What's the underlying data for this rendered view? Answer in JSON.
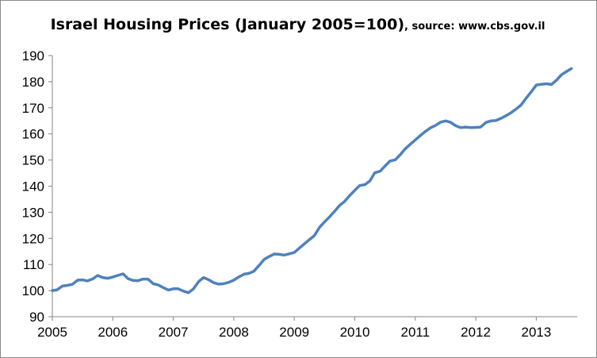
{
  "chart_data": {
    "type": "line",
    "title": "Israel Housing Prices (January 2005=100)",
    "subtitle": ", source: www.cbs.gov.il",
    "xlabel": "",
    "ylabel": "",
    "ylim": [
      90,
      190
    ],
    "xlim": [
      2005,
      2013.67
    ],
    "grid": false,
    "legend": "none",
    "y_ticks": [
      90,
      100,
      110,
      120,
      130,
      140,
      150,
      160,
      170,
      180,
      190
    ],
    "x_ticks": [
      2005,
      2006,
      2007,
      2008,
      2009,
      2010,
      2011,
      2012,
      2013
    ],
    "series": [
      {
        "color": "#4f81bd",
        "points": [
          [
            2005.0,
            100.0
          ],
          [
            2005.08,
            100.3
          ],
          [
            2005.17,
            101.8
          ],
          [
            2005.25,
            102.0
          ],
          [
            2005.33,
            102.4
          ],
          [
            2005.42,
            104.0
          ],
          [
            2005.5,
            104.1
          ],
          [
            2005.58,
            103.7
          ],
          [
            2005.67,
            104.5
          ],
          [
            2005.75,
            105.8
          ],
          [
            2005.83,
            105.0
          ],
          [
            2005.92,
            104.7
          ],
          [
            2006.0,
            105.2
          ],
          [
            2006.08,
            105.8
          ],
          [
            2006.17,
            106.4
          ],
          [
            2006.25,
            104.6
          ],
          [
            2006.33,
            103.9
          ],
          [
            2006.42,
            103.8
          ],
          [
            2006.5,
            104.4
          ],
          [
            2006.58,
            104.4
          ],
          [
            2006.67,
            102.6
          ],
          [
            2006.75,
            102.2
          ],
          [
            2006.83,
            101.2
          ],
          [
            2006.92,
            100.2
          ],
          [
            2007.0,
            100.7
          ],
          [
            2007.08,
            100.7
          ],
          [
            2007.17,
            99.8
          ],
          [
            2007.25,
            99.2
          ],
          [
            2007.33,
            100.6
          ],
          [
            2007.42,
            103.5
          ],
          [
            2007.5,
            105.0
          ],
          [
            2007.58,
            104.2
          ],
          [
            2007.67,
            103.0
          ],
          [
            2007.75,
            102.5
          ],
          [
            2007.83,
            102.6
          ],
          [
            2007.92,
            103.2
          ],
          [
            2008.0,
            104.0
          ],
          [
            2008.08,
            105.2
          ],
          [
            2008.17,
            106.3
          ],
          [
            2008.25,
            106.6
          ],
          [
            2008.33,
            107.4
          ],
          [
            2008.42,
            109.7
          ],
          [
            2008.5,
            111.9
          ],
          [
            2008.58,
            113.0
          ],
          [
            2008.67,
            114.0
          ],
          [
            2008.75,
            113.9
          ],
          [
            2008.83,
            113.6
          ],
          [
            2008.92,
            114.1
          ],
          [
            2009.0,
            114.6
          ],
          [
            2009.08,
            116.2
          ],
          [
            2009.17,
            118.0
          ],
          [
            2009.25,
            119.5
          ],
          [
            2009.33,
            121.0
          ],
          [
            2009.42,
            124.3
          ],
          [
            2009.5,
            126.3
          ],
          [
            2009.58,
            128.2
          ],
          [
            2009.67,
            130.5
          ],
          [
            2009.75,
            132.6
          ],
          [
            2009.83,
            134.1
          ],
          [
            2009.92,
            136.5
          ],
          [
            2010.0,
            138.4
          ],
          [
            2010.08,
            140.2
          ],
          [
            2010.17,
            140.6
          ],
          [
            2010.25,
            142.0
          ],
          [
            2010.33,
            145.1
          ],
          [
            2010.42,
            145.7
          ],
          [
            2010.5,
            147.7
          ],
          [
            2010.58,
            149.6
          ],
          [
            2010.67,
            150.1
          ],
          [
            2010.75,
            152.0
          ],
          [
            2010.83,
            154.2
          ],
          [
            2010.92,
            156.1
          ],
          [
            2011.0,
            157.7
          ],
          [
            2011.08,
            159.3
          ],
          [
            2011.17,
            161.0
          ],
          [
            2011.25,
            162.3
          ],
          [
            2011.33,
            163.2
          ],
          [
            2011.42,
            164.5
          ],
          [
            2011.5,
            165.0
          ],
          [
            2011.58,
            164.5
          ],
          [
            2011.67,
            163.1
          ],
          [
            2011.75,
            162.4
          ],
          [
            2011.83,
            162.6
          ],
          [
            2011.92,
            162.4
          ],
          [
            2012.0,
            162.5
          ],
          [
            2012.08,
            162.6
          ],
          [
            2012.17,
            164.4
          ],
          [
            2012.25,
            165.0
          ],
          [
            2012.33,
            165.1
          ],
          [
            2012.42,
            166.0
          ],
          [
            2012.5,
            167.0
          ],
          [
            2012.58,
            168.1
          ],
          [
            2012.67,
            169.6
          ],
          [
            2012.75,
            171.1
          ],
          [
            2012.83,
            173.6
          ],
          [
            2012.92,
            176.2
          ],
          [
            2013.0,
            178.7
          ],
          [
            2013.08,
            179.0
          ],
          [
            2013.17,
            179.2
          ],
          [
            2013.25,
            178.9
          ],
          [
            2013.33,
            180.5
          ],
          [
            2013.42,
            182.7
          ],
          [
            2013.5,
            183.9
          ],
          [
            2013.58,
            185.0
          ]
        ]
      }
    ]
  }
}
